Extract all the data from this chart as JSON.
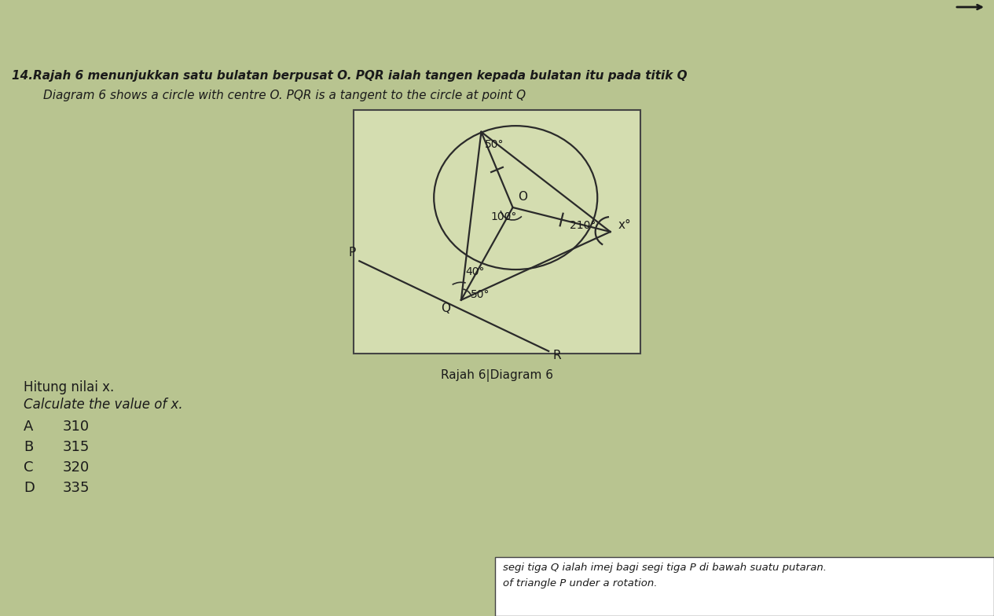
{
  "bg_color": "#b8c490",
  "box_bg": "#d4ddb0",
  "box_border": "#444444",
  "line_color": "#2a2a2a",
  "text_color": "#1a1a1a",
  "title_line1": "14.Rajah 6 menunjukkan satu bulatan berpusat O. PQR ialah tangen kepada bulatan itu pada titik Q",
  "title_line2": "Diagram 6 shows a circle with centre O. PQR is a tangent to the circle at point Q",
  "caption": "Rajah 6|Diagram 6",
  "question_line1": "Hitung nilai x.",
  "question_line2": "Calculate the value of x.",
  "choices_letter": [
    "A",
    "B",
    "C",
    "D"
  ],
  "choices_value": [
    "310",
    "315",
    "320",
    "335"
  ],
  "bottom_line1": "segi tiga Q ialah imej bagi segi tiga P di bawah suatu putaran.",
  "bottom_line2": "of triangle P under a rotation.",
  "angle_50_top": "50°",
  "angle_100": "100°",
  "angle_40": "40°",
  "angle_210": "210°",
  "angle_50_q": "50°",
  "label_x": "x°",
  "label_O": "O",
  "label_P": "P",
  "label_Q": "Q",
  "label_R": "R"
}
